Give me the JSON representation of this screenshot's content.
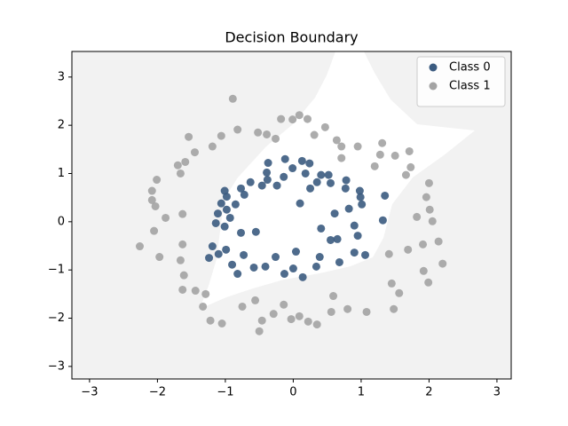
{
  "chart_data": {
    "type": "scatter",
    "title": "Decision Boundary",
    "xlim": [
      -3.26,
      3.21
    ],
    "ylim": [
      -3.26,
      3.53
    ],
    "xticks": [
      {
        "value": -3,
        "label": "−3"
      },
      {
        "value": -2,
        "label": "−2"
      },
      {
        "value": -1,
        "label": "−1"
      },
      0,
      1,
      2,
      3
    ],
    "yticks": [
      {
        "value": -3,
        "label": "−3"
      },
      {
        "value": -2,
        "label": "−2"
      },
      {
        "value": -1,
        "label": "−1"
      },
      0,
      1,
      2,
      3
    ],
    "legend": "upper right",
    "series": [
      {
        "name": "Class 0",
        "color": "#3b5b80",
        "x": [
          -0.12,
          0.13,
          -0.01,
          0.24,
          -0.37,
          -0.14,
          0.18,
          0.41,
          0.35,
          0.52,
          0.55,
          0.78,
          0.77,
          0.98,
          0.99,
          1.35,
          -0.39,
          -0.38,
          -0.46,
          -0.63,
          -0.77,
          -0.72,
          -1.01,
          -0.98,
          -1.06,
          -0.98,
          -0.85,
          -1.11,
          -0.93,
          -1.14,
          -1.01,
          -0.77,
          -1.19,
          -0.99,
          -1.24,
          -1.1,
          -0.9,
          -0.82,
          -0.73,
          -0.55,
          -0.58,
          -0.41,
          -0.26,
          -0.13,
          0.04,
          0.0,
          0.14,
          0.34,
          0.39,
          0.41,
          0.55,
          0.61,
          0.65,
          0.68,
          0.82,
          0.9,
          0.95,
          0.9,
          1.06,
          1.01,
          1.32,
          0.1,
          0.25,
          -0.24
        ],
        "y": [
          1.3,
          1.26,
          1.11,
          1.21,
          1.22,
          0.93,
          1.0,
          0.97,
          0.82,
          0.97,
          0.8,
          0.86,
          0.69,
          0.64,
          0.51,
          0.54,
          1.02,
          0.87,
          0.75,
          0.82,
          0.69,
          0.56,
          0.64,
          0.52,
          0.38,
          0.25,
          0.36,
          0.17,
          0.08,
          -0.03,
          -0.1,
          -0.23,
          -0.51,
          -0.58,
          -0.75,
          -0.67,
          -0.89,
          -1.08,
          -0.69,
          -0.21,
          -0.95,
          -0.93,
          -0.73,
          -1.08,
          -0.62,
          -0.97,
          -1.15,
          -0.93,
          -0.73,
          -0.14,
          -0.38,
          0.17,
          -0.36,
          -0.84,
          0.27,
          -0.08,
          -0.29,
          -0.64,
          -0.69,
          0.36,
          0.03,
          0.38,
          0.69,
          0.75
        ]
      },
      {
        "name": "Class 1",
        "color": "#a3a3a3",
        "x": [
          -0.89,
          -0.82,
          -1.54,
          -1.06,
          -1.19,
          -1.45,
          -1.59,
          -1.7,
          -1.66,
          -2.01,
          -2.08,
          -2.08,
          -2.03,
          -1.88,
          -1.63,
          -2.05,
          -2.26,
          -1.97,
          -1.63,
          -1.66,
          -1.61,
          -1.63,
          -1.44,
          -1.29,
          -1.33,
          -1.22,
          -1.05,
          -0.75,
          -0.56,
          -0.5,
          -0.46,
          -0.29,
          -0.14,
          -0.03,
          0.09,
          0.22,
          0.35,
          0.56,
          0.59,
          0.8,
          1.08,
          1.48,
          1.45,
          1.56,
          1.41,
          1.69,
          1.91,
          1.92,
          1.99,
          2.14,
          2.2,
          2.05,
          2.01,
          1.96,
          2.0,
          1.82,
          1.66,
          1.73,
          1.5,
          1.71,
          1.31,
          1.28,
          1.2,
          0.95,
          0.71,
          0.71,
          0.64,
          0.47,
          0.31,
          0.21,
          0.09,
          -0.01,
          -0.18,
          -0.39,
          -0.26,
          -0.52
        ],
        "y": [
          2.55,
          1.91,
          1.76,
          1.78,
          1.56,
          1.44,
          1.24,
          1.17,
          1.0,
          0.87,
          0.64,
          0.45,
          0.32,
          0.08,
          0.16,
          -0.19,
          -0.51,
          -0.73,
          -0.47,
          -0.8,
          -1.11,
          -1.41,
          -1.43,
          -1.5,
          -1.76,
          -2.05,
          -2.11,
          -1.76,
          -1.63,
          -2.27,
          -2.05,
          -1.91,
          -1.72,
          -2.02,
          -1.96,
          -2.07,
          -2.13,
          -1.87,
          -1.54,
          -1.81,
          -1.87,
          -1.81,
          -1.28,
          -1.48,
          -0.67,
          -0.58,
          -0.47,
          -1.02,
          -1.26,
          -0.41,
          -0.87,
          0.01,
          0.25,
          0.51,
          0.8,
          0.1,
          0.97,
          1.13,
          1.37,
          1.46,
          1.63,
          1.39,
          1.15,
          1.56,
          1.56,
          1.32,
          1.69,
          1.96,
          1.8,
          2.13,
          2.21,
          2.12,
          2.13,
          1.81,
          1.72,
          1.85
        ]
      }
    ]
  }
}
